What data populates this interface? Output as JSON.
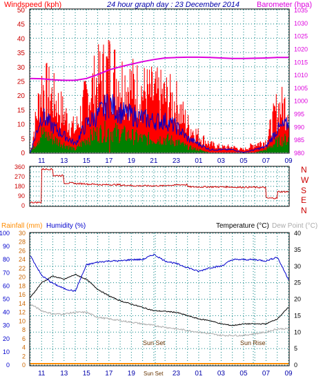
{
  "colors": {
    "wind_red": "#ff0000",
    "wind_blue": "#0000cc",
    "wind_green": "#008000",
    "baro": "#dd00dd",
    "dir_red": "#cc0000",
    "humidity": "#0000cc",
    "temperature": "#000000",
    "dewpoint": "#aaaaaa",
    "rainfall": "#ff8c00",
    "axis_blue": "#0000aa",
    "grid": "#008080"
  },
  "header": {
    "left": "Windspeed (kph)",
    "center": "24 hour graph day : 23 December 2014",
    "right": "Barometer (hpa)"
  },
  "panel2": {
    "right_labels": [
      "N",
      "W",
      "S",
      "E",
      "N"
    ]
  },
  "panel3": {
    "rainfall_label": "Rainfall (mm)",
    "humidity_label": "Humidity (%)",
    "temperature_label": "Temperature (°C)",
    "dewpoint_label": "Dew Point (°C)",
    "sunset_label": "Sun Set",
    "sunrise_label": "Sun Rise",
    "sunset_axis_label": "Sun Set"
  },
  "chart_data": [
    {
      "type": "line",
      "name_hint": "wind and barometer",
      "x": [
        "10",
        "11",
        "12",
        "13",
        "14",
        "15",
        "16",
        "17",
        "18",
        "19",
        "20",
        "21",
        "22",
        "23",
        "00",
        "01",
        "02",
        "03",
        "04",
        "05",
        "06",
        "07",
        "08",
        "09"
      ],
      "xticks": [
        "11",
        "13",
        "15",
        "17",
        "19",
        "21",
        "23",
        "01",
        "03",
        "05",
        "07",
        "09"
      ],
      "left_axis": {
        "ylim": [
          0,
          50
        ],
        "ticks": [
          0,
          5,
          10,
          15,
          20,
          25,
          30,
          35,
          40,
          45,
          50
        ]
      },
      "right_axis": {
        "ylim": [
          980,
          1035
        ],
        "ticks": [
          980,
          985,
          990,
          995,
          1000,
          1005,
          1010,
          1015,
          1020,
          1025,
          1030,
          1035
        ]
      },
      "series": [
        {
          "name": "Windspeed (kph)",
          "role": "gust",
          "values": [
            0,
            24,
            20,
            14,
            8,
            20,
            26,
            30,
            26,
            24,
            22,
            21,
            20,
            18,
            10,
            6,
            3,
            2,
            2,
            1,
            3,
            4,
            16,
            17
          ]
        },
        {
          "name": "Windspeed (kph)",
          "role": "avg",
          "values": [
            0,
            13,
            9,
            6,
            3,
            10,
            13,
            17,
            14,
            13,
            12,
            11,
            11,
            9,
            5,
            3,
            1,
            1,
            1,
            0,
            1,
            2,
            8,
            10
          ]
        },
        {
          "name": "Windspeed (kph)",
          "role": "low",
          "values": [
            0,
            7,
            5,
            3,
            1,
            5,
            7,
            8,
            7,
            6,
            5,
            5,
            5,
            4,
            2,
            1,
            0,
            0,
            0,
            0,
            0,
            1,
            4,
            5
          ]
        },
        {
          "name": "Barometer (hpa)",
          "values": [
            1008.5,
            1008.4,
            1008.0,
            1007.8,
            1007.8,
            1008.5,
            1010.0,
            1011.8,
            1013.0,
            1014.0,
            1015.0,
            1015.8,
            1016.4,
            1016.6,
            1016.7,
            1016.7,
            1016.6,
            1016.4,
            1016.2,
            1016.2,
            1016.3,
            1016.4,
            1016.6,
            1016.6
          ]
        }
      ]
    },
    {
      "type": "line",
      "name_hint": "wind direction",
      "x": [
        "10",
        "11",
        "12",
        "13",
        "14",
        "15",
        "16",
        "17",
        "18",
        "19",
        "20",
        "21",
        "22",
        "23",
        "00",
        "01",
        "02",
        "03",
        "04",
        "05",
        "06",
        "07",
        "08",
        "09"
      ],
      "ylim": [
        0,
        360
      ],
      "yticks": [
        0,
        45,
        90,
        135,
        180,
        225,
        270,
        315,
        360
      ],
      "ytick_labels": [
        "0",
        "",
        "90",
        "",
        "180",
        "",
        "270",
        "",
        "360"
      ],
      "series": [
        {
          "name": "Wind Direction",
          "values": [
            30,
            340,
            280,
            210,
            205,
            200,
            195,
            195,
            190,
            185,
            185,
            185,
            190,
            195,
            175,
            175,
            175,
            175,
            172,
            172,
            170,
            70,
            130,
            130
          ]
        }
      ]
    },
    {
      "type": "line",
      "name_hint": "humidity temperature dew point rainfall",
      "x": [
        "10",
        "11",
        "12",
        "13",
        "14",
        "15",
        "16",
        "17",
        "18",
        "19",
        "20",
        "21",
        "22",
        "23",
        "00",
        "01",
        "02",
        "03",
        "04",
        "05",
        "06",
        "07",
        "08",
        "09"
      ],
      "xticks": [
        "11",
        "13",
        "15",
        "17",
        "19",
        "21",
        "23",
        "01",
        "03",
        "05",
        "07",
        "09"
      ],
      "humidity_axis": {
        "ylim": [
          0,
          100
        ],
        "ticks": [
          0,
          10,
          20,
          30,
          40,
          50,
          60,
          70,
          80,
          90,
          100
        ]
      },
      "rainfall_axis": {
        "ylim": [
          0,
          30
        ],
        "ticks": [
          0,
          2,
          4,
          6,
          8,
          10,
          12,
          14,
          16,
          18,
          20,
          22,
          24,
          26,
          28,
          30
        ]
      },
      "temperature_axis": {
        "ylim": [
          0,
          40
        ],
        "ticks": [
          0,
          5,
          10,
          15,
          20,
          25,
          30,
          35,
          40
        ]
      },
      "series": [
        {
          "name": "Humidity (%)",
          "values": [
            83,
            68,
            62,
            58,
            56,
            76,
            78,
            79,
            79,
            80,
            80,
            84,
            79,
            77,
            74,
            71,
            74,
            75,
            80,
            80,
            80,
            79,
            82,
            65
          ]
        },
        {
          "name": "Temperature (°C)",
          "values": [
            20.5,
            25,
            27,
            26,
            27.5,
            26,
            23,
            21,
            19.5,
            18.5,
            17.5,
            16.5,
            16.3,
            16,
            15,
            14,
            13.5,
            12.5,
            12,
            12.5,
            12.5,
            12.5,
            14,
            17.5
          ]
        },
        {
          "name": "Dew Point (°C)",
          "values": [
            18.5,
            16.5,
            15.5,
            15.5,
            16,
            16,
            14.5,
            14,
            13.5,
            13,
            12.5,
            12,
            11.5,
            11,
            10.5,
            10,
            9.5,
            9,
            9,
            9,
            9.5,
            10,
            11,
            11
          ]
        },
        {
          "name": "Rainfall (mm)",
          "values": [
            0,
            0,
            0,
            0,
            0,
            0,
            0,
            0,
            0,
            0,
            0,
            0,
            0,
            0,
            0,
            0,
            0,
            0,
            0,
            0,
            0,
            0,
            0,
            0
          ]
        }
      ],
      "annotations": [
        "Sun Set",
        "Sun Rise"
      ]
    }
  ]
}
